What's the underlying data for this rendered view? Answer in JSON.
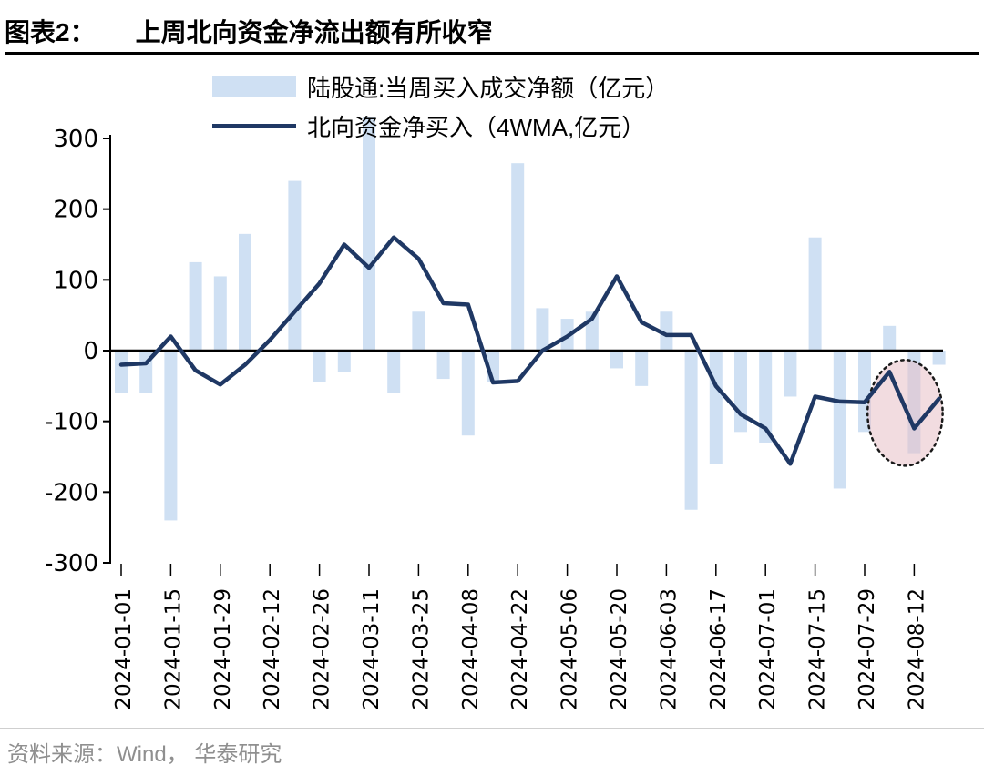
{
  "header": {
    "tag": "图表2：",
    "title": "上周北向资金净流出额有所收窄"
  },
  "legend": [
    {
      "label": "陆股通:当周买入成交净额（亿元）",
      "type": "bar",
      "color": "#cfe0f3"
    },
    {
      "label": "北向资金净买入（4WMA,亿元）",
      "type": "line",
      "color": "#1f3864"
    }
  ],
  "footer": {
    "source": "资料来源：Wind， 华泰研究"
  },
  "chart_data": {
    "type": "bar+line",
    "title": "上周北向资金净流出额有所收窄",
    "xlabel": "",
    "ylabel": "",
    "ylim": [
      -300,
      300
    ],
    "yticks": [
      300,
      200,
      100,
      0,
      -100,
      -200,
      -300
    ],
    "grid": false,
    "legend_position": "top",
    "x": [
      "2024-01-01",
      "2024-01-08",
      "2024-01-15",
      "2024-01-22",
      "2024-01-29",
      "2024-02-05",
      "2024-02-12",
      "2024-02-19",
      "2024-02-26",
      "2024-03-04",
      "2024-03-11",
      "2024-03-18",
      "2024-03-25",
      "2024-04-01",
      "2024-04-08",
      "2024-04-15",
      "2024-04-22",
      "2024-04-29",
      "2024-05-06",
      "2024-05-13",
      "2024-05-20",
      "2024-05-27",
      "2024-06-03",
      "2024-06-10",
      "2024-06-17",
      "2024-06-24",
      "2024-07-01",
      "2024-07-08",
      "2024-07-15",
      "2024-07-22",
      "2024-07-29",
      "2024-08-05",
      "2024-08-12",
      "2024-08-19"
    ],
    "x_tick_labels": [
      "2024-01-01",
      "2024-01-15",
      "2024-01-29",
      "2024-02-12",
      "2024-02-26",
      "2024-03-11",
      "2024-03-25",
      "2024-04-08",
      "2024-04-22",
      "2024-05-06",
      "2024-05-20",
      "2024-06-03",
      "2024-06-17",
      "2024-07-01",
      "2024-07-15",
      "2024-07-29",
      "2024-08-12"
    ],
    "series": [
      {
        "name": "陆股通:当周买入成交净额（亿元）",
        "type": "bar",
        "color": "#cfe0f3",
        "values": [
          -60,
          -60,
          -240,
          125,
          105,
          165,
          0,
          240,
          -45,
          -30,
          330,
          -60,
          55,
          -40,
          -120,
          -45,
          265,
          60,
          45,
          55,
          -25,
          -50,
          55,
          -225,
          -160,
          -115,
          -130,
          -65,
          160,
          -195,
          -115,
          35,
          -145,
          -20
        ]
      },
      {
        "name": "北向资金净买入（4WMA,亿元）",
        "type": "line",
        "color": "#1f3864",
        "values": [
          -20,
          -18,
          20,
          -28,
          -48,
          -20,
          15,
          55,
          95,
          150,
          117,
          160,
          130,
          67,
          65,
          -45,
          -43,
          0,
          20,
          45,
          105,
          40,
          22,
          22,
          -50,
          -90,
          -110,
          -160,
          -65,
          -72,
          -73,
          -30,
          -110,
          -68
        ]
      }
    ],
    "annotation": {
      "shape": "dotted-ellipse",
      "x_range": [
        "2024-08-05",
        "2024-08-19"
      ],
      "fill": "#e8bfc6",
      "stroke": "#1a1a1a"
    }
  }
}
